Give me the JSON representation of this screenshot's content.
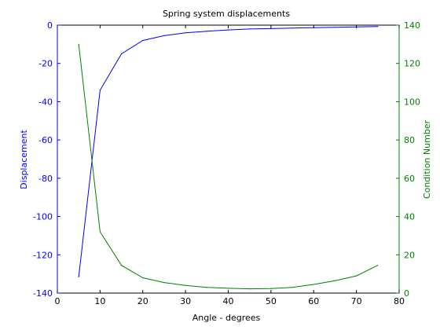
{
  "chart_data": {
    "type": "line",
    "title": "Spring system displacements",
    "xlabel": "Angle - degrees",
    "ylabel_left": "Displacement",
    "ylabel_right": "Condition Number",
    "xlim": [
      0,
      80
    ],
    "xticks": [
      0,
      10,
      20,
      30,
      40,
      50,
      60,
      70,
      80
    ],
    "ylim_left": [
      -140,
      0
    ],
    "yticks_left": [
      -140,
      -120,
      -100,
      -80,
      -60,
      -40,
      -20,
      0
    ],
    "ylim_right": [
      0,
      140
    ],
    "yticks_right": [
      0,
      20,
      40,
      60,
      80,
      100,
      120,
      140
    ],
    "grid": false,
    "colors": {
      "left_axis": "#0000ff",
      "right_axis": "#008000",
      "frame": "#000000"
    },
    "series": [
      {
        "axis": "left",
        "color": "#0000ff",
        "x": [
          5,
          10,
          15,
          20,
          25,
          30,
          35,
          40,
          45,
          50,
          55,
          60,
          65,
          70,
          75
        ],
        "values": [
          -131.5,
          -34,
          -15,
          -8,
          -5.5,
          -4,
          -3.2,
          -2.5,
          -2,
          -1.8,
          -1.5,
          -1.3,
          -1.1,
          -0.9,
          -0.7
        ]
      },
      {
        "axis": "right",
        "color": "#008000",
        "x": [
          5,
          10,
          15,
          20,
          25,
          30,
          35,
          40,
          45,
          50,
          55,
          60,
          65,
          70,
          75
        ],
        "values": [
          130,
          32,
          14.5,
          8,
          5.5,
          4,
          3,
          2.5,
          2.2,
          2.4,
          3,
          4.5,
          6.5,
          9,
          14.5
        ]
      }
    ]
  }
}
